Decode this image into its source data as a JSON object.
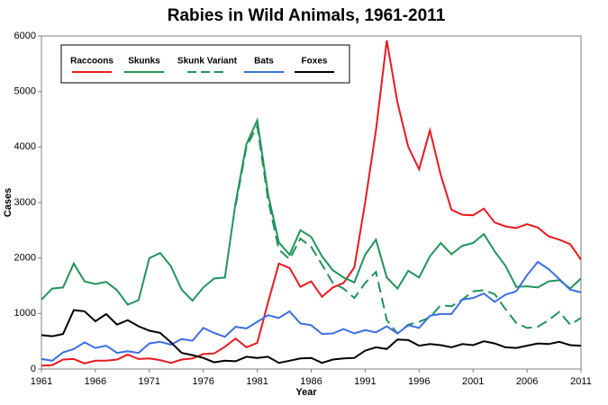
{
  "chart_data": {
    "type": "line",
    "title": "Rabies in Wild Animals, 1961-2011",
    "x_label": "Year",
    "y_label": "Cases",
    "x": [
      1961,
      1962,
      1963,
      1964,
      1965,
      1966,
      1967,
      1968,
      1969,
      1970,
      1971,
      1972,
      1973,
      1974,
      1975,
      1976,
      1977,
      1978,
      1979,
      1980,
      1981,
      1982,
      1983,
      1984,
      1985,
      1986,
      1987,
      1988,
      1989,
      1990,
      1991,
      1992,
      1993,
      1994,
      1995,
      1996,
      1997,
      1998,
      1999,
      2000,
      2001,
      2002,
      2003,
      2004,
      2005,
      2006,
      2007,
      2008,
      2009,
      2010,
      2011
    ],
    "xlim": [
      1961,
      2011
    ],
    "xticks": [
      1961,
      1966,
      1971,
      1976,
      1981,
      1986,
      1991,
      1996,
      2001,
      2006,
      2011
    ],
    "ylim": [
      0,
      6000
    ],
    "yticks": [
      0,
      1000,
      2000,
      3000,
      4000,
      5000,
      6000
    ],
    "grid": false,
    "legend": "upper left",
    "series": [
      {
        "name": "Raccoons",
        "color": "#e8191f",
        "dashed": false,
        "values": [
          60,
          70,
          170,
          180,
          100,
          150,
          150,
          170,
          260,
          180,
          190,
          160,
          110,
          170,
          190,
          270,
          280,
          400,
          550,
          390,
          470,
          1200,
          1900,
          1820,
          1480,
          1580,
          1300,
          1470,
          1550,
          1830,
          3000,
          4300,
          5920,
          4800,
          4000,
          3600,
          4300,
          3500,
          2870,
          2780,
          2770,
          2890,
          2640,
          2570,
          2540,
          2610,
          2550,
          2390,
          2330,
          2250,
          1970
        ]
      },
      {
        "name": "Skunks",
        "color": "#22935a",
        "dashed": false,
        "values": [
          1250,
          1450,
          1470,
          1900,
          1580,
          1530,
          1570,
          1420,
          1160,
          1240,
          2000,
          2090,
          1850,
          1430,
          1230,
          1470,
          1630,
          1650,
          3000,
          4050,
          4480,
          3150,
          2280,
          2060,
          2500,
          2380,
          2030,
          1780,
          1650,
          1560,
          2060,
          2330,
          1650,
          1450,
          1770,
          1650,
          2030,
          2270,
          2070,
          2220,
          2270,
          2430,
          2120,
          1860,
          1480,
          1490,
          1470,
          1580,
          1600,
          1450,
          1630
        ]
      },
      {
        "name": "Skunk Variant",
        "color": "#22935a",
        "dashed": true,
        "values": [
          null,
          null,
          null,
          null,
          null,
          null,
          null,
          null,
          null,
          null,
          null,
          null,
          null,
          null,
          null,
          null,
          null,
          null,
          2950,
          4000,
          4380,
          3050,
          2150,
          1980,
          2350,
          2200,
          1880,
          1550,
          1450,
          1280,
          1550,
          1750,
          880,
          640,
          800,
          850,
          930,
          1150,
          1130,
          1250,
          1400,
          1420,
          1350,
          1080,
          830,
          740,
          760,
          880,
          1030,
          800,
          920
        ]
      },
      {
        "name": "Bats",
        "color": "#3b6fe0",
        "dashed": false,
        "values": [
          180,
          150,
          300,
          360,
          480,
          380,
          420,
          290,
          320,
          290,
          460,
          490,
          440,
          540,
          510,
          740,
          650,
          580,
          760,
          730,
          850,
          970,
          920,
          1040,
          820,
          790,
          630,
          640,
          720,
          640,
          700,
          660,
          770,
          640,
          790,
          740,
          960,
          990,
          990,
          1250,
          1280,
          1360,
          1210,
          1340,
          1400,
          1690,
          1930,
          1800,
          1620,
          1430,
          1380
        ]
      },
      {
        "name": "Foxes",
        "color": "#000000",
        "dashed": false,
        "values": [
          610,
          590,
          630,
          1060,
          1040,
          860,
          990,
          800,
          880,
          770,
          690,
          650,
          480,
          290,
          250,
          200,
          120,
          150,
          140,
          220,
          200,
          220,
          110,
          150,
          190,
          200,
          110,
          170,
          190,
          200,
          330,
          390,
          360,
          530,
          520,
          420,
          450,
          430,
          390,
          450,
          430,
          500,
          460,
          390,
          380,
          420,
          460,
          450,
          490,
          430,
          420
        ]
      }
    ]
  }
}
